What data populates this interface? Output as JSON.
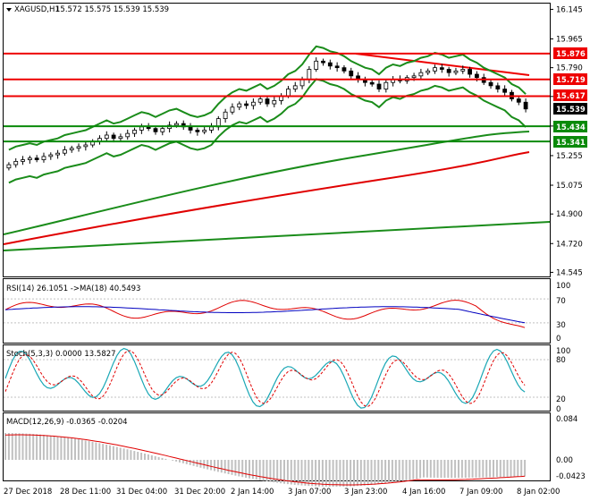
{
  "header": {
    "symbol": "XAGUSD,H1",
    "ohlc": "15.572 15.575 15.539 15.539"
  },
  "colors": {
    "red_level": "#ee0000",
    "green_level": "#0a8a0a",
    "bollinger": "#1a8c1a",
    "ma_red": "#e00000",
    "candle": "#000000",
    "rsi_line": "#e00000",
    "rsi_ma": "#0000c0",
    "stoch_main": "#19a7b5",
    "stoch_signal": "#e00000",
    "macd_hist": "#c0c0c0",
    "macd_signal": "#e00000"
  },
  "price_axis": {
    "ticks": [
      "16.145",
      "15.965",
      "15.790",
      "15.615",
      "15.435",
      "15.255",
      "15.075",
      "14.900",
      "14.720",
      "14.545"
    ]
  },
  "levels": [
    {
      "price": 15.876,
      "label": "15.876",
      "type": "resistance"
    },
    {
      "price": 15.719,
      "label": "15.719",
      "type": "resistance"
    },
    {
      "price": 15.617,
      "label": "15.617",
      "type": "resistance"
    },
    {
      "price": 15.434,
      "label": "15.434",
      "type": "support"
    },
    {
      "price": 15.341,
      "label": "15.341",
      "type": "support"
    }
  ],
  "current_price": {
    "price": 15.539,
    "label": "15.539"
  },
  "rsi": {
    "label": "RSI(14) 26.1051 ->MA(18) 40.5493",
    "ticks": [
      "100",
      "70",
      "30",
      "0"
    ]
  },
  "stoch": {
    "label": "Stoch(5,3,3) 0.0000 13.5827",
    "ticks": [
      "100",
      "80",
      "20",
      "0"
    ]
  },
  "macd": {
    "label": "MACD(12,26,9) -0.0365 -0.0204",
    "ticks": [
      "0.084",
      "0.00",
      "-0.0423"
    ]
  },
  "time_axis": {
    "labels": [
      "27 Dec 2018",
      "28 Dec 11:00",
      "31 Dec 04:00",
      "31 Dec 20:00",
      "2 Jan 14:00",
      "3 Jan 07:00",
      "3 Jan 23:00",
      "4 Jan 16:00",
      "7 Jan 09:00",
      "8 Jan 02:00"
    ]
  },
  "chart_data": {
    "type": "candlestick",
    "price_range": [
      14.52,
      16.18
    ],
    "closes": [
      15.2,
      15.22,
      15.23,
      15.24,
      15.23,
      15.25,
      15.26,
      15.27,
      15.29,
      15.3,
      15.31,
      15.32,
      15.34,
      15.36,
      15.38,
      15.36,
      15.37,
      15.39,
      15.41,
      15.43,
      15.42,
      15.4,
      15.42,
      15.44,
      15.45,
      15.43,
      15.41,
      15.4,
      15.41,
      15.43,
      15.48,
      15.52,
      15.55,
      15.57,
      15.56,
      15.58,
      15.6,
      15.57,
      15.59,
      15.62,
      15.66,
      15.68,
      15.72,
      15.78,
      15.83,
      15.82,
      15.8,
      15.79,
      15.77,
      15.74,
      15.72,
      15.7,
      15.69,
      15.66,
      15.7,
      15.72,
      15.71,
      15.73,
      15.74,
      15.76,
      15.77,
      15.79,
      15.78,
      15.76,
      15.77,
      15.78,
      15.75,
      15.73,
      15.7,
      15.68,
      15.66,
      15.64,
      15.6,
      15.58,
      15.539
    ]
  }
}
